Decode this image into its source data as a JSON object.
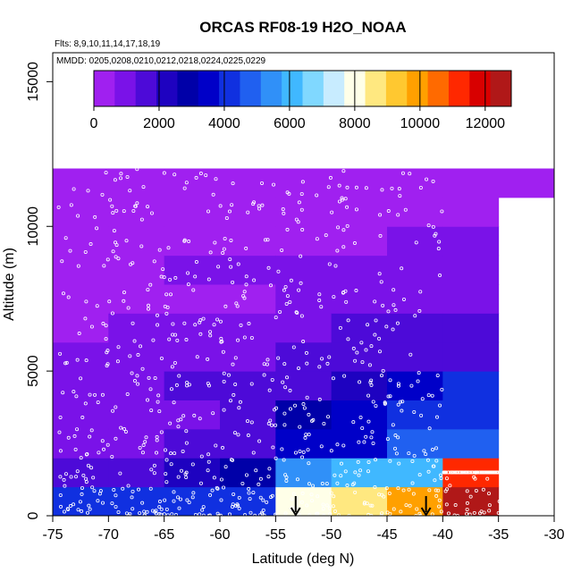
{
  "chart_data": {
    "type": "heatmap",
    "title": "ORCAS RF08-19 H2O_NOAA",
    "annotations": [
      "Flts: 8,9,10,11,14,17,18,19",
      "MMDD: 0205,0208,0210,0212,0218,0224,0225,0229"
    ],
    "xlabel": "Latitude (deg N)",
    "ylabel": "Altitude (m)",
    "xlim": [
      -75,
      -30
    ],
    "ylim": [
      0,
      16000
    ],
    "x_ticks": [
      "-75",
      "-70",
      "-65",
      "-60",
      "-55",
      "-50",
      "-45",
      "-40",
      "-35",
      "-30"
    ],
    "x_tick_values": [
      -75,
      -70,
      -65,
      -60,
      -55,
      -50,
      -45,
      -40,
      -35,
      -30
    ],
    "y_ticks": [
      "0",
      "5000",
      "10000",
      "15000"
    ],
    "y_tick_values": [
      0,
      5000,
      10000,
      15000
    ],
    "colorbar": {
      "min": 0,
      "max": 12800,
      "tick_labels": [
        "0",
        "2000",
        "4000",
        "6000",
        "8000",
        "10000",
        "12000"
      ],
      "tick_values": [
        0,
        2000,
        4000,
        6000,
        8000,
        10000,
        12000
      ],
      "colors": [
        "#a020f0",
        "#7a12e8",
        "#4d0ad8",
        "#1e02c0",
        "#0000a8",
        "#0000c8",
        "#1030e0",
        "#2060f0",
        "#3090f8",
        "#40b8ff",
        "#80d8ff",
        "#c8ecff",
        "#ffffe8",
        "#ffe880",
        "#ffc830",
        "#ffa000",
        "#ff6a00",
        "#ff2800",
        "#d80000",
        "#b01818"
      ]
    },
    "cell_lat_width": 5,
    "cell_alt_height": 1000,
    "cells": [
      {
        "lat": -75,
        "values": [
          4400,
          1400,
          1050,
          1150,
          1150,
          650,
          620,
          560,
          480,
          420,
          340,
          320
        ]
      },
      {
        "lat": -70,
        "values": [
          4400,
          1700,
          1100,
          1150,
          1250,
          850,
          680,
          580,
          500,
          420,
          340,
          320
        ]
      },
      {
        "lat": -65,
        "values": [
          4300,
          2200,
          1300,
          1000,
          1400,
          850,
          680,
          500,
          800,
          460,
          370,
          320
        ]
      },
      {
        "lat": -60,
        "values": [
          4400,
          2900,
          1800,
          1400,
          1300,
          930,
          720,
          490,
          820,
          500,
          390,
          320
        ]
      },
      {
        "lat": -55,
        "values": [
          8200,
          5600,
          3400,
          3100,
          1700,
          1450,
          1100,
          880,
          680,
          560,
          400,
          330
        ]
      },
      {
        "lat": -50,
        "values": [
          8700,
          6000,
          3800,
          3800,
          2400,
          1700,
          1350,
          990,
          800,
          620,
          450,
          330
        ]
      },
      {
        "lat": -45,
        "values": [
          9800,
          6000,
          4500,
          4200,
          3700,
          1600,
          1300,
          1200,
          1000,
          650,
          460,
          330
        ]
      },
      {
        "lat": -40,
        "values": [
          12800,
          11500,
          5000,
          4300,
          3900,
          1800,
          1350,
          1100,
          900,
          700,
          500,
          340
        ]
      },
      {
        "lat": -35,
        "values": [
          null,
          null,
          null,
          null,
          null,
          null,
          null,
          null,
          null,
          null,
          null,
          350
        ]
      }
    ],
    "arrows_lat": [
      -53.2,
      -41.5
    ],
    "sample_points": {
      "seed": 19,
      "count": 900,
      "marker": "open circle",
      "color": "#ffffff",
      "lat_range": [
        -74.5,
        -34.5
      ],
      "alt_range": [
        0,
        12000
      ]
    }
  }
}
